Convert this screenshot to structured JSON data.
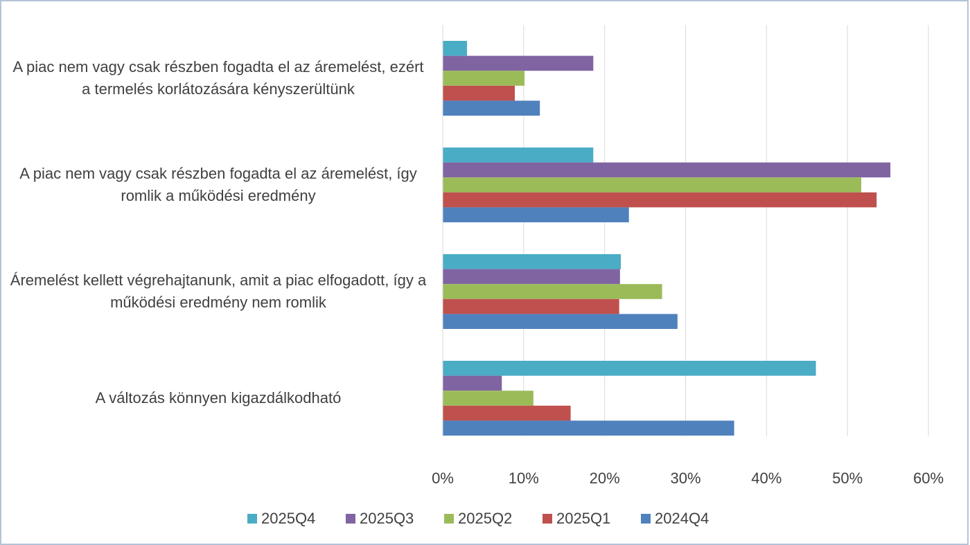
{
  "chart_data": {
    "type": "bar",
    "orientation": "horizontal",
    "categories": [
      "A piac nem vagy csak részben fogadta el az áremelést, ezért a termelés korlátozására kényszerültünk",
      "A piac nem vagy csak részben fogadta el az áremelést, így romlik a működési eredmény",
      "Áremelést kellett végrehajtanunk, amit a piac elfogadott, így a működési eredmény nem romlik",
      "A változás könnyen kigazdálkodható"
    ],
    "series": [
      {
        "name": "2025Q4",
        "color": "#4bacc6",
        "values": [
          3.0,
          18.6,
          22.0,
          46.1
        ]
      },
      {
        "name": "2025Q3",
        "color": "#8064a2",
        "values": [
          18.6,
          55.3,
          21.9,
          7.3
        ]
      },
      {
        "name": "2025Q2",
        "color": "#9bbb59",
        "values": [
          10.1,
          51.7,
          27.1,
          11.2
        ]
      },
      {
        "name": "2025Q1",
        "color": "#c0504d",
        "values": [
          8.9,
          53.6,
          21.8,
          15.8
        ]
      },
      {
        "name": "2024Q4",
        "color": "#4f81bd",
        "values": [
          12.0,
          23.0,
          29.0,
          36.0
        ]
      }
    ],
    "xlim": [
      0,
      60
    ],
    "xticks": [
      {
        "value": 0,
        "label": "0%"
      },
      {
        "value": 10,
        "label": "10%"
      },
      {
        "value": 20,
        "label": "20%"
      },
      {
        "value": 30,
        "label": "30%"
      },
      {
        "value": 40,
        "label": "40%"
      },
      {
        "value": 50,
        "label": "50%"
      },
      {
        "value": 60,
        "label": "60%"
      }
    ],
    "grid": true,
    "legend": "bottom"
  }
}
